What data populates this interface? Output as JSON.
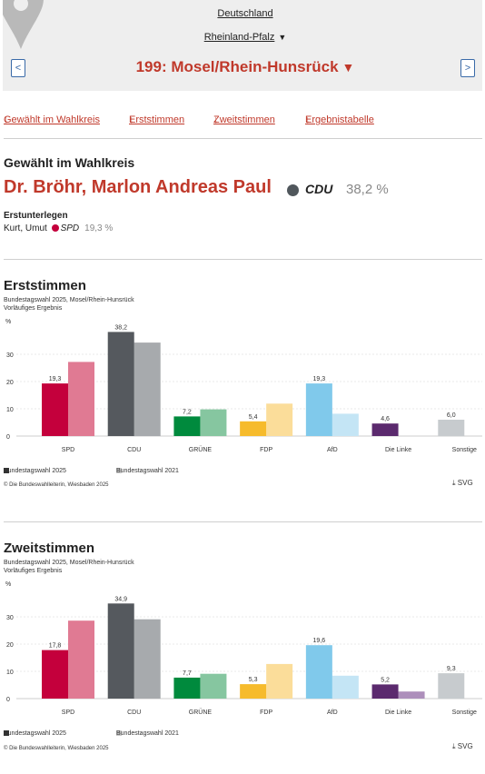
{
  "header": {
    "breadcrumb_country": "Deutschland",
    "breadcrumb_state": "Rheinland-Pfalz",
    "state_arrow": "▼",
    "wahlkreis_title": "199: Mosel/Rhein-Hunsrück",
    "title_arrow": "▼",
    "prev_icon": "<",
    "next_icon": ">"
  },
  "jumplinks": [
    {
      "label": "Gewählt im Wahlkreis",
      "icon": "↓"
    },
    {
      "label": "Erststimmen",
      "icon": "↓"
    },
    {
      "label": "Zweitstimmen",
      "icon": "↓"
    },
    {
      "label": "Ergebnistabelle",
      "icon": "↓"
    }
  ],
  "elected": {
    "heading": "Gewählt im Wahlkreis",
    "name": "Dr. Bröhr, Marlon Andreas Paul",
    "party": "CDU",
    "party_color": "#50575c",
    "percent": "38,2 %",
    "runnerup_heading": "Erstunterlegen",
    "runnerup_name": "Kurt, Umut",
    "runnerup_party": "SPD",
    "runnerup_color": "#c4003c",
    "runnerup_percent": "19,3 %"
  },
  "colors": {
    "SPD": [
      "#c4003c",
      "#e07a93"
    ],
    "CDU": [
      "#55595e",
      "#a7aaad"
    ],
    "GRÜNE": [
      "#008a3d",
      "#86c6a0"
    ],
    "FDP": [
      "#f6bb2c",
      "#fbdd9a"
    ],
    "AfD": [
      "#80c9eb",
      "#c4e5f5"
    ],
    "Die Linke": [
      "#5b2a6e",
      "#ad8fbb"
    ],
    "Sonstige": [
      "#c7cbce",
      "#c7cbce"
    ]
  },
  "chart_data": [
    {
      "type": "bar",
      "title": "Erststimmen",
      "subtitle_line1": "Bundestagswahl 2025, Mosel/Rhein-Hunsrück",
      "subtitle_line2": "Vorläufiges Ergebnis",
      "ylabel": "%",
      "ylim": [
        0,
        40
      ],
      "yticks": [
        "0",
        "10",
        "20",
        "30"
      ],
      "grid": true,
      "categories": [
        "SPD",
        "CDU",
        "GRÜNE",
        "FDP",
        "AfD",
        "Die Linke",
        "Sonstige"
      ],
      "series": [
        {
          "name": "Bundestagswahl 2025",
          "values": [
            19.3,
            38.2,
            7.2,
            5.4,
            19.3,
            4.6,
            6.0
          ]
        },
        {
          "name": "Bundestagswahl 2021",
          "values": [
            27.2,
            34.3,
            9.8,
            11.9,
            8.2,
            null,
            null
          ]
        }
      ],
      "data_labels": [
        "19,3",
        "38,2",
        "7,2",
        "5,4",
        "19,3",
        "4,6",
        "6,0"
      ],
      "legend_position": "bottom-left",
      "credit": "© Die Bundeswahlleiterin, Wiesbaden 2025",
      "download_label": "SVG",
      "download_icon": "⤓"
    },
    {
      "type": "bar",
      "title": "Zweitstimmen",
      "subtitle_line1": "Bundestagswahl 2025, Mosel/Rhein-Hunsrück",
      "subtitle_line2": "Vorläufiges Ergebnis",
      "ylabel": "%",
      "ylim": [
        0,
        40
      ],
      "yticks": [
        "0",
        "10",
        "20",
        "30"
      ],
      "grid": true,
      "categories": [
        "SPD",
        "CDU",
        "GRÜNE",
        "FDP",
        "AfD",
        "Die Linke",
        "Sonstige"
      ],
      "series": [
        {
          "name": "Bundestagswahl 2025",
          "values": [
            17.8,
            34.9,
            7.7,
            5.3,
            19.6,
            5.2,
            9.3
          ]
        },
        {
          "name": "Bundestagswahl 2021",
          "values": [
            28.6,
            29.1,
            9.1,
            12.7,
            8.4,
            2.6,
            null
          ]
        }
      ],
      "data_labels": [
        "17,8",
        "34,9",
        "7,7",
        "5,3",
        "19,6",
        "5,2",
        "9,3"
      ],
      "legend_position": "bottom-left",
      "credit": "© Die Bundeswahlleiterin, Wiesbaden 2025",
      "download_label": "SVG",
      "download_icon": "⤓"
    }
  ]
}
